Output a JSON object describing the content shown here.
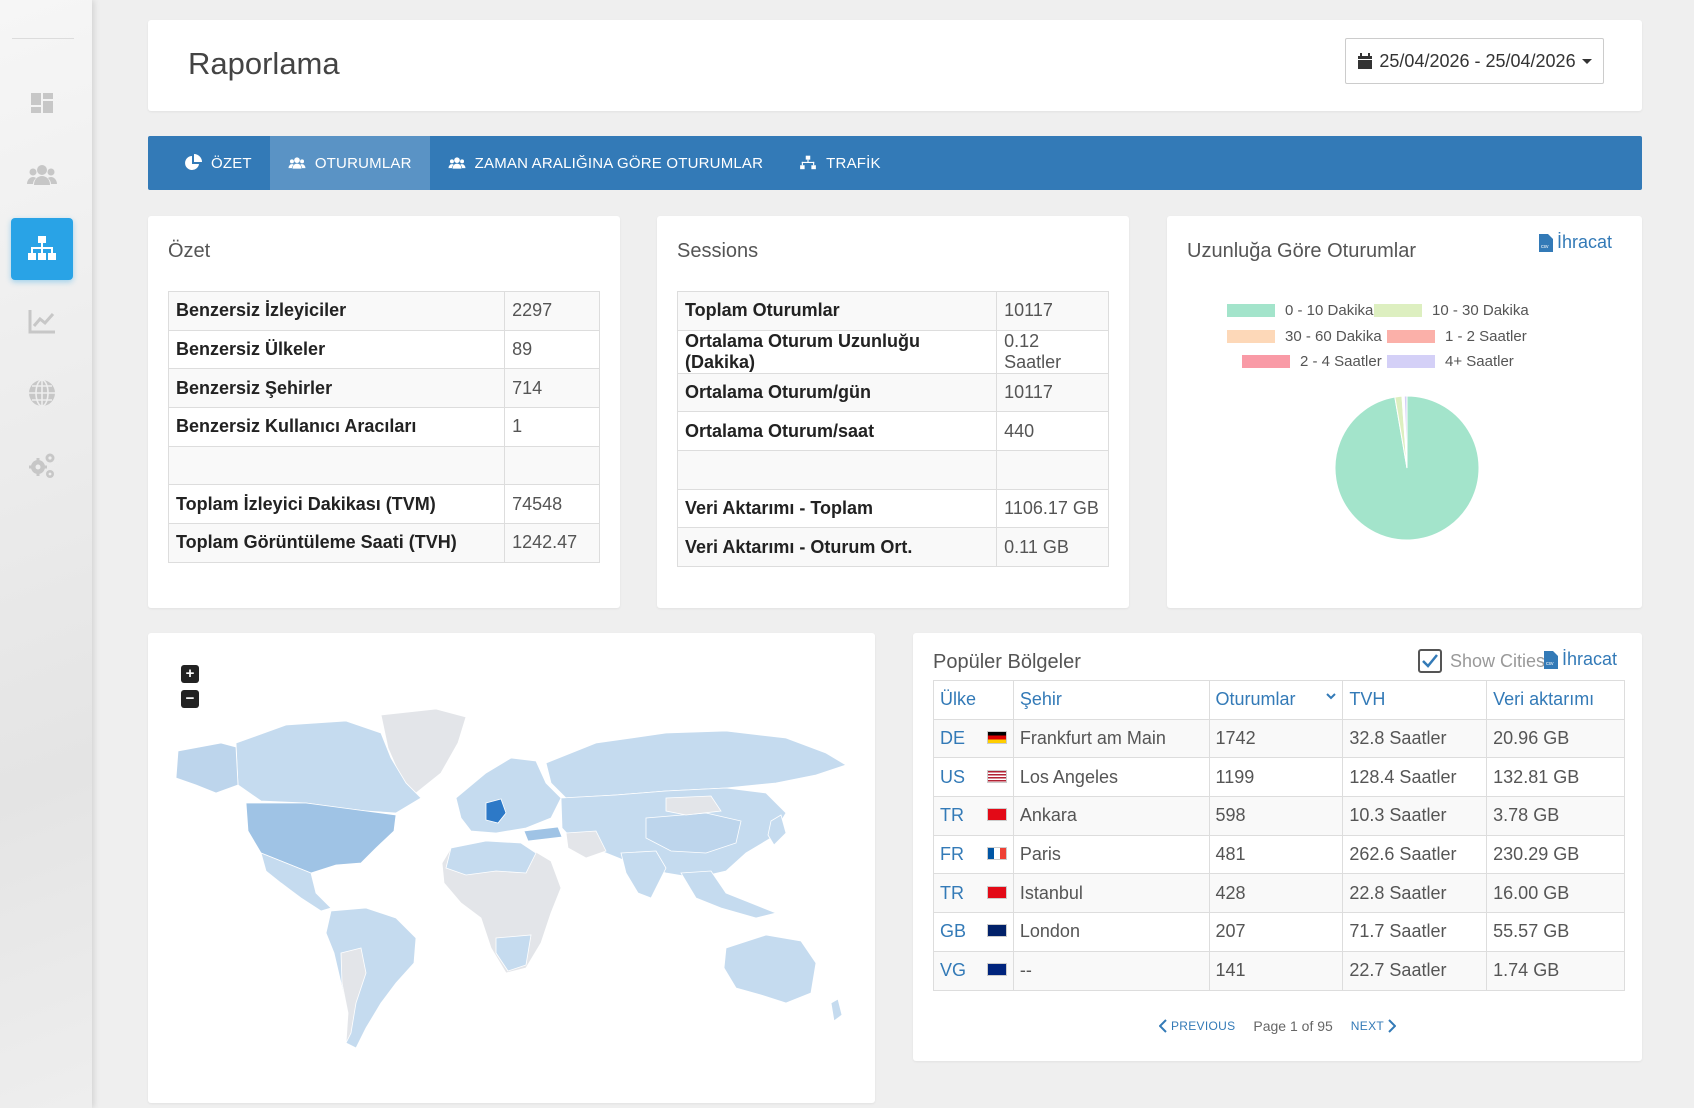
{
  "header": {
    "title": "Raporlama",
    "date_range": "25/04/2026 - 25/04/2026"
  },
  "sidebar": {
    "items": [
      {
        "icon": "dashboard-icon"
      },
      {
        "icon": "users-icon"
      },
      {
        "icon": "sitemap-icon",
        "active": true
      },
      {
        "icon": "chart-line-icon"
      },
      {
        "icon": "globe-icon"
      },
      {
        "icon": "cogs-icon"
      }
    ]
  },
  "tabs": [
    {
      "label": "ÖZET",
      "icon": "pie-icon"
    },
    {
      "label": "OTURUMLAR",
      "icon": "users-icon",
      "active": true
    },
    {
      "label": "ZAMAN ARALIĞINA GÖRE OTURUMLAR",
      "icon": "users-icon"
    },
    {
      "label": "TRAFİK",
      "icon": "sitemap-icon"
    }
  ],
  "summary": {
    "title": "Özet",
    "rows": [
      {
        "k": "Benzersiz İzleyiciler",
        "v": "2297"
      },
      {
        "k": "Benzersiz Ülkeler",
        "v": "89"
      },
      {
        "k": "Benzersiz Şehirler",
        "v": "714"
      },
      {
        "k": "Benzersiz Kullanıcı Aracıları",
        "v": "1"
      },
      {
        "k": "",
        "v": ""
      },
      {
        "k": "Toplam İzleyici Dakikası (TVM)",
        "v": "74548"
      },
      {
        "k": "Toplam Görüntüleme Saati (TVH)",
        "v": "1242.47"
      }
    ]
  },
  "sessions": {
    "title": "Sessions",
    "rows": [
      {
        "k": "Toplam Oturumlar",
        "v": "10117"
      },
      {
        "k": "Ortalama Oturum Uzunluğu (Dakika)",
        "v": "0.12 Saatler"
      },
      {
        "k": "Ortalama Oturum/gün",
        "v": "10117"
      },
      {
        "k": "Ortalama Oturum/saat",
        "v": "440"
      },
      {
        "k": "",
        "v": ""
      },
      {
        "k": "Veri Aktarımı - Toplam",
        "v": "1106.17 GB"
      },
      {
        "k": "Veri Aktarımı - Oturum Ort.",
        "v": "0.11 GB"
      }
    ]
  },
  "duration": {
    "title": "Uzunluğa Göre Oturumlar",
    "export_label": "İhracat"
  },
  "chart_data": {
    "type": "pie",
    "categories": [
      "0 - 10 Dakika",
      "10 - 30 Dakika",
      "30 - 60 Dakika",
      "1 - 2 Saatler",
      "2 - 4 Saatler",
      "4+ Saatler"
    ],
    "values": [
      97.3,
      1.6,
      0.1,
      0.2,
      0.2,
      0.6
    ],
    "colors": [
      "#a3e4cb",
      "#ddefc0",
      "#fdd8b8",
      "#fbb0a9",
      "#f99aa6",
      "#d4d0f7"
    ],
    "legend_position": "top"
  },
  "map": {
    "zoom_in": "+",
    "zoom_out": "−"
  },
  "regions": {
    "title": "Popüler Bölgeler",
    "show_cities_label": "Show Cities",
    "show_cities_checked": true,
    "export_label": "İhracat",
    "columns": [
      "Ülke",
      "Şehir",
      "Oturumlar",
      "TVH",
      "Veri aktarımı"
    ],
    "rows": [
      {
        "cc": "DE",
        "city": "Frankfurt am Main",
        "sessions": "1742",
        "tvh": "32.8 Saatler",
        "data": "20.96 GB"
      },
      {
        "cc": "US",
        "city": "Los Angeles",
        "sessions": "1199",
        "tvh": "128.4 Saatler",
        "data": "132.81 GB"
      },
      {
        "cc": "TR",
        "city": "Ankara",
        "sessions": "598",
        "tvh": "10.3 Saatler",
        "data": "3.78 GB"
      },
      {
        "cc": "FR",
        "city": "Paris",
        "sessions": "481",
        "tvh": "262.6 Saatler",
        "data": "230.29 GB"
      },
      {
        "cc": "TR",
        "city": "Istanbul",
        "sessions": "428",
        "tvh": "22.8 Saatler",
        "data": "16.00 GB"
      },
      {
        "cc": "GB",
        "city": "London",
        "sessions": "207",
        "tvh": "71.7 Saatler",
        "data": "55.57 GB"
      },
      {
        "cc": "VG",
        "city": "--",
        "sessions": "141",
        "tvh": "22.7 Saatler",
        "data": "1.74 GB"
      }
    ],
    "pager": {
      "prev": "PREVIOUS",
      "info": "Page 1 of 95",
      "next": "NEXT"
    }
  }
}
